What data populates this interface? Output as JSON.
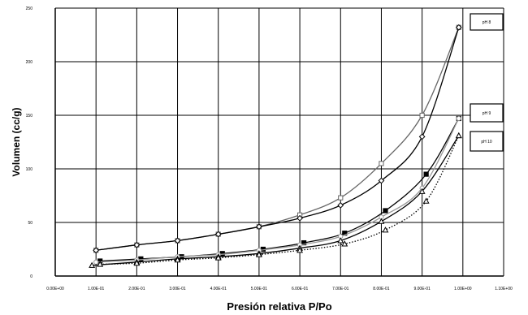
{
  "chart_data": {
    "type": "line",
    "title": "",
    "xlabel": "Presión relativa P/Po",
    "ylabel": "Volumen (cc/g)",
    "xlim": [
      0,
      1.1
    ],
    "ylim": [
      0,
      250
    ],
    "x_ticks": [
      0,
      0.1,
      0.2,
      0.3,
      0.4,
      0.5,
      0.6,
      0.7,
      0.8,
      0.9,
      1.0,
      1.1
    ],
    "x_tick_labels": [
      "0.00E+00",
      "1.00E-01",
      "2.00E-01",
      "3.00E-01",
      "4.00E-01",
      "5.00E-01",
      "6.00E-01",
      "7.00E-01",
      "8.00E-01",
      "9.00E-01",
      "1.00E+00",
      "1.10E+00"
    ],
    "y_ticks": [
      0,
      50,
      100,
      150,
      200,
      250
    ],
    "y_tick_labels": [
      "0",
      "50",
      "100",
      "150",
      "200",
      "250"
    ],
    "grid": true,
    "legend_placement": "right",
    "series": [
      {
        "name": "pH 8",
        "color": "#666666",
        "marker": "square-open",
        "points": [
          [
            0.1,
            24
          ],
          [
            0.2,
            29
          ],
          [
            0.3,
            33
          ],
          [
            0.4,
            39
          ],
          [
            0.5,
            46
          ],
          [
            0.6,
            57
          ],
          [
            0.7,
            73
          ],
          [
            0.8,
            105
          ],
          [
            0.9,
            150
          ],
          [
            0.99,
            232
          ]
        ]
      },
      {
        "name": "",
        "color": "#000000",
        "marker": "diamond-open",
        "points": [
          [
            0.1,
            24
          ],
          [
            0.2,
            29
          ],
          [
            0.3,
            33
          ],
          [
            0.4,
            39
          ],
          [
            0.5,
            46
          ],
          [
            0.6,
            54
          ],
          [
            0.7,
            66
          ],
          [
            0.8,
            89
          ],
          [
            0.9,
            130
          ],
          [
            0.99,
            232
          ]
        ]
      },
      {
        "name": "pH 9",
        "color": "#000000",
        "marker": "square-filled",
        "points": [
          [
            0.11,
            14
          ],
          [
            0.21,
            16
          ],
          [
            0.31,
            18
          ],
          [
            0.41,
            21
          ],
          [
            0.51,
            25
          ],
          [
            0.61,
            31
          ],
          [
            0.71,
            40
          ],
          [
            0.81,
            61
          ],
          [
            0.91,
            95
          ],
          [
            0.99,
            147
          ]
        ]
      },
      {
        "name": "",
        "color": "#999999",
        "marker": "circle-open",
        "points": [
          [
            0.1,
            13
          ],
          [
            0.2,
            15
          ],
          [
            0.3,
            18
          ],
          [
            0.4,
            20
          ],
          [
            0.5,
            24
          ],
          [
            0.6,
            29
          ],
          [
            0.7,
            37
          ],
          [
            0.8,
            55
          ],
          [
            0.9,
            82
          ],
          [
            0.99,
            147
          ]
        ]
      },
      {
        "name": "pH 10",
        "color": "#000000",
        "marker": "triangle-open",
        "points": [
          [
            0.09,
            10
          ],
          [
            0.2,
            13
          ],
          [
            0.3,
            16
          ],
          [
            0.4,
            18
          ],
          [
            0.5,
            21
          ],
          [
            0.6,
            26
          ],
          [
            0.7,
            33
          ],
          [
            0.8,
            51
          ],
          [
            0.9,
            79
          ],
          [
            0.99,
            131
          ]
        ]
      },
      {
        "name": "",
        "color": "#000000",
        "marker": "triangle-open",
        "dashed": true,
        "points": [
          [
            0.11,
            11
          ],
          [
            0.2,
            12
          ],
          [
            0.3,
            15
          ],
          [
            0.4,
            17
          ],
          [
            0.5,
            20
          ],
          [
            0.6,
            24
          ],
          [
            0.71,
            30
          ],
          [
            0.81,
            43
          ],
          [
            0.91,
            70
          ],
          [
            0.99,
            131
          ]
        ]
      }
    ],
    "legend": [
      {
        "label": "pH 8"
      },
      {
        "label": "pH 9"
      },
      {
        "label": "pH 10"
      }
    ]
  }
}
